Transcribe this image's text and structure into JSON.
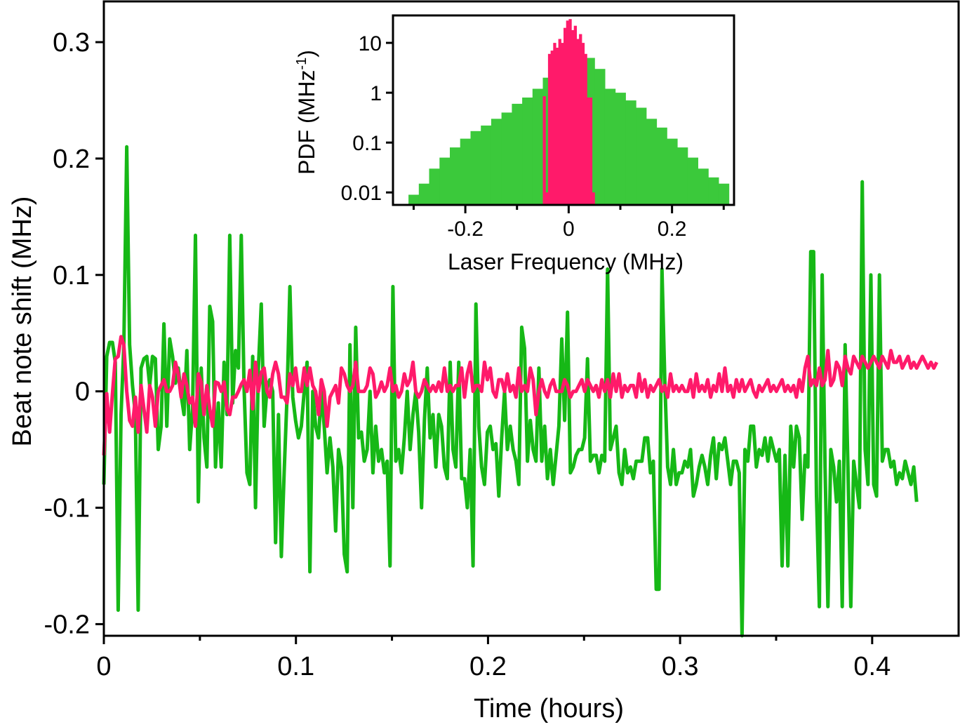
{
  "colors": {
    "unlocked": "#16b816",
    "locked": "#ff1a6a",
    "hist_unlocked": "#3bc93b",
    "hist_locked": "#ff1a6a",
    "axes": "#000000"
  },
  "chart_data": [
    {
      "type": "line",
      "title": "",
      "xlabel": "Time (hours)",
      "ylabel": "Beat note shift (MHz)",
      "xlim": [
        0,
        0.445
      ],
      "ylim": [
        -0.21,
        0.335
      ],
      "xticks": [
        0,
        0.1,
        0.2,
        0.3,
        0.4
      ],
      "xtick_labels": [
        "0",
        "0.1",
        "0.2",
        "0.3",
        "0.4"
      ],
      "xminor": [
        0.05,
        0.15,
        0.25,
        0.35
      ],
      "yticks": [
        -0.2,
        -0.1,
        0,
        0.1,
        0.2,
        0.3
      ],
      "ytick_labels": [
        "-0.2",
        "-0.1",
        "0",
        "0.1",
        "0.2",
        "0.3"
      ],
      "grid": false,
      "series": [
        {
          "color": "#16b816",
          "x_start": 0,
          "x_step": 0.00149,
          "y": [
            -0.08,
            0.03,
            0.042,
            0.042,
            0.025,
            -0.188,
            -0.02,
            0.04,
            0.21,
            0.04,
            0.005,
            -0.02,
            -0.188,
            0.02,
            0.028,
            0.03,
            0.005,
            0.03,
            0.028,
            -0.05,
            -0.03,
            0.058,
            -0.03,
            0.045,
            0.03,
            0.007,
            0.02,
            -0.003,
            -0.02,
            0.035,
            -0.05,
            -0.015,
            0.134,
            -0.095,
            0.02,
            -0.04,
            -0.065,
            0.073,
            0.06,
            -0.065,
            -0.01,
            -0.065,
            0.025,
            -0.02,
            0.134,
            -0.01,
            0.035,
            0.02,
            0.134,
            0.003,
            -0.07,
            -0.08,
            0.03,
            -0.1,
            0.02,
            0.075,
            -0.03,
            0.003,
            0.01,
            0.0,
            -0.13,
            -0.02,
            -0.142,
            -0.07,
            -0.005,
            0.09,
            -0.005,
            -0.025,
            -0.04,
            -0.03,
            0.0,
            0.025,
            -0.155,
            0.0,
            -0.03,
            -0.04,
            0.0,
            -0.03,
            -0.07,
            -0.04,
            -0.065,
            -0.12,
            -0.05,
            -0.065,
            -0.14,
            -0.155,
            0.04,
            -0.1,
            0.055,
            -0.04,
            -0.035,
            -0.06,
            -0.05,
            0.0,
            -0.07,
            -0.03,
            -0.06,
            -0.05,
            -0.07,
            -0.06,
            -0.15,
            0.09,
            -0.06,
            -0.05,
            -0.07,
            -0.04,
            0.0,
            -0.05,
            -0.02,
            0.0,
            -0.035,
            -0.1,
            -0.025,
            0.02,
            -0.04,
            -0.02,
            -0.065,
            -0.02,
            -0.03,
            -0.065,
            -0.075,
            0.025,
            -0.05,
            -0.065,
            0.025,
            -0.075,
            -0.075,
            -0.1,
            -0.05,
            -0.15,
            0.075,
            -0.03,
            -0.065,
            -0.08,
            -0.035,
            -0.03,
            -0.05,
            -0.045,
            -0.09,
            -0.04,
            0.0,
            -0.05,
            -0.03,
            -0.05,
            -0.06,
            -0.08,
            0.055,
            0.037,
            -0.06,
            -0.025,
            -0.05,
            -0.06,
            0.02,
            -0.06,
            -0.03,
            -0.075,
            -0.05,
            -0.08,
            -0.055,
            -0.03,
            0.045,
            -0.025,
            0.068,
            -0.07,
            -0.065,
            -0.055,
            -0.05,
            -0.05,
            -0.04,
            0.028,
            -0.06,
            -0.055,
            -0.055,
            -0.07,
            -0.055,
            -0.06,
            0.105,
            -0.05,
            -0.04,
            -0.03,
            -0.07,
            -0.08,
            -0.05,
            -0.07,
            -0.065,
            -0.075,
            -0.06,
            -0.06,
            -0.06,
            -0.04,
            -0.04,
            -0.07,
            -0.06,
            -0.17,
            -0.17,
            0.105,
            0.01,
            -0.065,
            -0.08,
            -0.05,
            -0.08,
            -0.07,
            -0.07,
            -0.06,
            -0.065,
            -0.05,
            -0.09,
            -0.08,
            -0.065,
            -0.055,
            -0.065,
            -0.08,
            -0.055,
            -0.04,
            -0.075,
            -0.045,
            -0.05,
            -0.04,
            -0.06,
            -0.08,
            -0.06,
            -0.06,
            -0.07,
            -0.21,
            -0.05,
            -0.06,
            -0.03,
            -0.03,
            -0.065,
            -0.05,
            -0.055,
            -0.04,
            -0.06,
            -0.04,
            -0.05,
            -0.06,
            -0.05,
            -0.15,
            -0.055,
            -0.15,
            -0.03,
            -0.065,
            -0.03,
            -0.04,
            -0.11,
            -0.055,
            -0.065,
            0.12,
            0.12,
            -0.09,
            -0.185,
            0.1,
            -0.065,
            -0.185,
            -0.05,
            -0.065,
            -0.095,
            -0.06,
            -0.185,
            0.04,
            -0.065,
            -0.185,
            -0.06,
            -0.08,
            -0.1,
            0.18,
            -0.05,
            -0.08,
            0.1,
            -0.08,
            -0.09,
            0.1,
            -0.06,
            -0.05,
            -0.05,
            -0.065,
            -0.06,
            -0.08,
            -0.07,
            -0.075,
            -0.06,
            -0.07,
            -0.08,
            -0.065,
            -0.095
          ]
        },
        {
          "color": "#ff1a6a",
          "x_start": 0,
          "x_step": 0.00149,
          "y": [
            -0.055,
            -0.002,
            -0.035,
            -0.002,
            0.028,
            0.03,
            0.047,
            0.04,
            0.0,
            -0.025,
            -0.03,
            -0.005,
            -0.035,
            0.005,
            -0.015,
            -0.035,
            0.005,
            -0.005,
            -0.03,
            0.0,
            0.005,
            0.01,
            0.0,
            0.0,
            0.005,
            0.025,
            0.015,
            -0.005,
            0.015,
            0.005,
            -0.01,
            -0.005,
            -0.03,
            0.015,
            0.008,
            -0.02,
            0.005,
            -0.015,
            -0.03,
            0.008,
            0.007,
            0.0,
            0.008,
            -0.015,
            -0.02,
            -0.005,
            -0.005,
            0.0,
            0.006,
            0.01,
            0.0,
            0.018,
            -0.015,
            0.025,
            0.0,
            0.016,
            0.02,
            0.0,
            -0.005,
            0.015,
            0.025,
            0.015,
            -0.005,
            -0.005,
            -0.01,
            0.015,
            0.005,
            0.02,
            0.0,
            0.0,
            0.02,
            0.005,
            0.02,
            0.005,
            0.0,
            -0.02,
            0.01,
            0.0,
            -0.03,
            -0.005,
            0.0,
            0.005,
            -0.01,
            0.02,
            0.015,
            0.005,
            0.0,
            0.005,
            0.025,
            0.0,
            0.0,
            0.0,
            0.005,
            0.02,
            0.015,
            -0.005,
            0.0,
            0.008,
            0.0,
            0.005,
            0.02,
            0.0,
            0.005,
            -0.005,
            0.0,
            0.015,
            0.005,
            0.01,
            0.025,
            0.0,
            -0.005,
            0.0,
            0.01,
            0.005,
            0.0,
            0.005,
            0.0,
            0.008,
            0.0,
            0.02,
            0.0,
            0.005,
            0.0,
            0.005,
            0.005,
            0.02,
            -0.005,
            0.015,
            0.025,
            0.0,
            0.005,
            0.005,
            0.0,
            0.025,
            0.01,
            0.02,
            0.0,
            -0.005,
            0.01,
            0.01,
            0.0,
            0.015,
            0.0,
            0.005,
            -0.005,
            0.02,
            0.0,
            0.005,
            0.0,
            0.02,
            0.01,
            -0.02,
            0.0,
            0.01,
            0.0,
            -0.005,
            0.005,
            0.01,
            0.0,
            0.0,
            0.0,
            0.01,
            0.005,
            -0.005,
            0.0,
            0.0,
            0.005,
            0.01,
            0.0,
            0.01,
            0.005,
            0.0,
            0.005,
            -0.005,
            0.01,
            0.0,
            0.01,
            -0.005,
            0.015,
            0.0,
            0.015,
            -0.005,
            0.005,
            0.0,
            0.005,
            0.005,
            -0.005,
            0.015,
            0.0,
            0.01,
            -0.005,
            0.005,
            0.0,
            0.005,
            0.01,
            0.0,
            0.005,
            -0.005,
            0.015,
            0.0,
            0.005,
            0.0,
            0.005,
            0.0,
            0.0,
            0.01,
            -0.005,
            0.015,
            0.0,
            0.005,
            0.0,
            0.01,
            -0.005,
            0.005,
            0.0,
            0.015,
            0.0,
            0.02,
            0.0,
            0.005,
            -0.005,
            0.01,
            0.0,
            0.01,
            0.0,
            0.005,
            0.01,
            0.0,
            -0.005,
            0.005,
            0.0,
            0.005,
            0.01,
            0.0,
            0.005,
            0.0,
            0.005,
            0.01,
            0.0,
            0.005,
            0.0,
            0.005,
            -0.005,
            0.01,
            0.0,
            0.02,
            0.03,
            0.005,
            0.01,
            0.005,
            0.02,
            0.005,
            0.01,
            0.035,
            0.005,
            0.01,
            0.025,
            0.02,
            0.005,
            0.03,
            0.02,
            0.015,
            0.03,
            0.025,
            0.02,
            0.03,
            0.025,
            0.02,
            0.025,
            0.03,
            0.025,
            0.02,
            0.03,
            0.025,
            0.02,
            0.035,
            0.025,
            0.025,
            0.03,
            0.02,
            0.025,
            0.03,
            0.02,
            0.025,
            0.02,
            0.025,
            0.03,
            0.025,
            0.02,
            0.025,
            0.02,
            0.025
          ]
        }
      ]
    },
    {
      "type": "bar",
      "title": "",
      "xlabel": "Laser Frequency (MHz)",
      "ylabel": "PDF (MHz",
      "ylabel_superscript": "-1",
      "ylabel_close": ")",
      "xlim": [
        -0.34,
        0.32
      ],
      "ylim_log10": [
        -2.25,
        1.55
      ],
      "yscale": "log",
      "xticks": [
        -0.2,
        0,
        0.2
      ],
      "xtick_labels": [
        "-0.2",
        "0",
        "0.2"
      ],
      "xminor": [
        -0.3,
        -0.1,
        0.1,
        0.3
      ],
      "yticks": [
        0.01,
        0.1,
        1,
        10
      ],
      "ytick_labels": [
        "0.01",
        "0.1",
        "1",
        "10"
      ],
      "grid": false,
      "bin_width": 0.02,
      "series": [
        {
          "color": "#3bc93b",
          "bin_starts": [
            -0.31,
            -0.29,
            -0.27,
            -0.25,
            -0.23,
            -0.21,
            -0.19,
            -0.17,
            -0.15,
            -0.13,
            -0.11,
            -0.09,
            -0.07,
            -0.05,
            -0.03,
            -0.01,
            0.01,
            0.03,
            0.05,
            0.07,
            0.09,
            0.11,
            0.13,
            0.15,
            0.17,
            0.19,
            0.21,
            0.23,
            0.25,
            0.27,
            0.29
          ],
          "values": [
            0.009,
            0.015,
            0.03,
            0.05,
            0.08,
            0.12,
            0.17,
            0.22,
            0.3,
            0.4,
            0.6,
            0.8,
            1.2,
            2.0,
            2.5,
            6.0,
            9.0,
            5.0,
            3.0,
            1.2,
            1.0,
            0.7,
            0.5,
            0.3,
            0.2,
            0.12,
            0.08,
            0.05,
            0.03,
            0.02,
            0.015
          ]
        },
        {
          "color": "#ff1a6a",
          "bin_starts": [
            -0.05,
            -0.045,
            -0.04,
            -0.035,
            -0.03,
            -0.025,
            -0.02,
            -0.015,
            -0.01,
            -0.005,
            0.0,
            0.005,
            0.01,
            0.015,
            0.02,
            0.025,
            0.03,
            0.035,
            0.04,
            0.045
          ],
          "bin_width": 0.005,
          "values": [
            0.85,
            0.01,
            6.0,
            7.0,
            10.0,
            8.0,
            12.0,
            10.0,
            20.0,
            28.0,
            30.0,
            18.0,
            22.0,
            12.0,
            15.0,
            10.0,
            6.0,
            0.8,
            0.8,
            0.01
          ]
        }
      ]
    }
  ]
}
